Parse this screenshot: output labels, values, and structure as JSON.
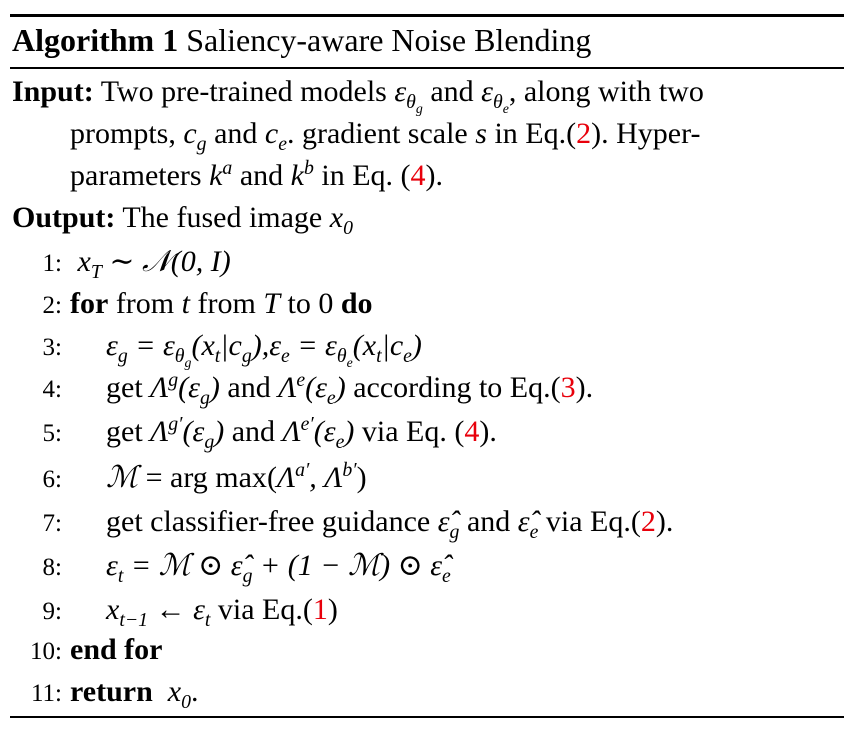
{
  "algorithm": {
    "label": "Algorithm 1",
    "title": "Saliency-aware Noise Blending"
  },
  "input": {
    "label": "Input:",
    "line1_a": "Two pre-trained models ",
    "line1_b": " and ",
    "line1_c": ", along with two",
    "line2_a": "prompts, ",
    "line2_b": " and ",
    "line2_c": ". gradient scale ",
    "line2_d": " in Eq.(",
    "ref_eq2": "2",
    "line2_e": "). Hyper-",
    "line3_a": "parameters ",
    "line3_b": " and ",
    "line3_c": " in Eq. (",
    "ref_eq4": "4",
    "line3_d": ")."
  },
  "output": {
    "label": "Output:",
    "text": "The fused image "
  },
  "steps": [
    {
      "num": "1:"
    },
    {
      "num": "2:",
      "kw_for": "for",
      "from": " from ",
      "to": " to 0 ",
      "kw_do": "do"
    },
    {
      "num": "3:"
    },
    {
      "num": "4:",
      "a": "get ",
      "b": " and ",
      "c": " according to Eq.(",
      "ref": "3",
      "d": ")."
    },
    {
      "num": "5:",
      "a": "get ",
      "b": " and ",
      "c": " via Eq. (",
      "ref": "4",
      "d": ")."
    },
    {
      "num": "6:",
      "argmax": "arg max"
    },
    {
      "num": "7:",
      "a": "get classifier-free guidance ",
      "b": " and ",
      "c": " via Eq.(",
      "ref": "2",
      "d": ")."
    },
    {
      "num": "8:"
    },
    {
      "num": "9:",
      "c": " via Eq.(",
      "ref": "1",
      "d": ")"
    },
    {
      "num": "10:",
      "kw": "end for"
    },
    {
      "num": "11:",
      "kw": "return",
      "end": "."
    }
  ]
}
